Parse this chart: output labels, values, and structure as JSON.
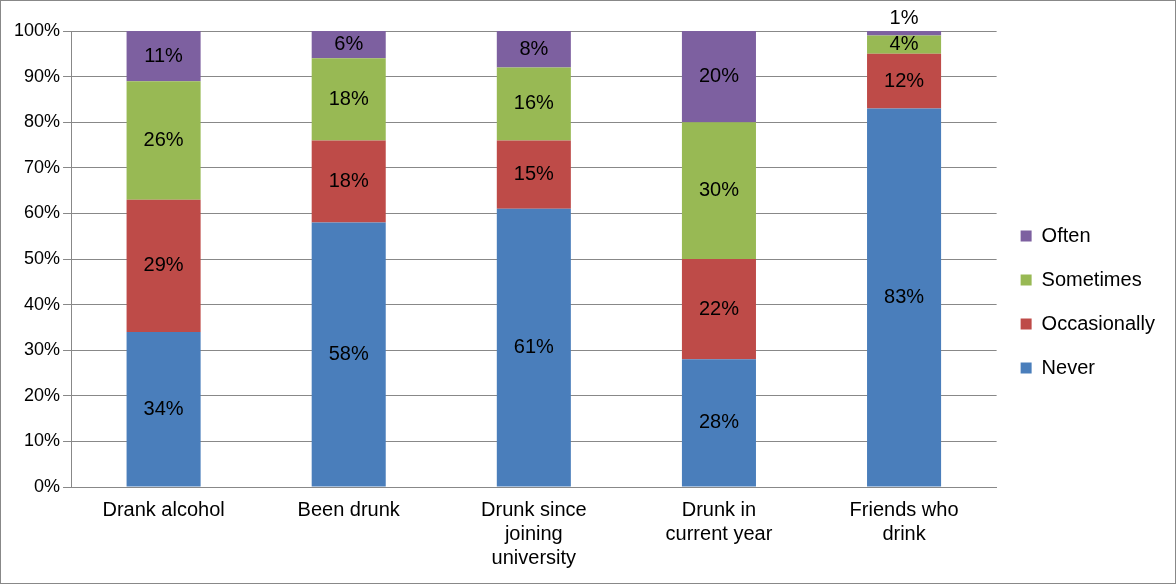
{
  "chart_data": {
    "type": "bar",
    "stacked": true,
    "categories": [
      "Drank alcohol",
      "Been drunk",
      "Drunk since joining university",
      "Drunk in current year",
      "Friends who drink"
    ],
    "series": [
      {
        "name": "Never",
        "color": "#4a7ebb",
        "values": [
          34,
          58,
          61,
          28,
          83
        ],
        "value_labels": [
          "34%",
          "58%",
          "61%",
          "28%",
          "83%"
        ]
      },
      {
        "name": "Occasionally",
        "color": "#be4b48",
        "values": [
          29,
          18,
          15,
          22,
          12
        ],
        "value_labels": [
          "29%",
          "18%",
          "15%",
          "22%",
          "12%"
        ]
      },
      {
        "name": "Sometimes",
        "color": "#98b954",
        "values": [
          26,
          18,
          16,
          30,
          4
        ],
        "value_labels": [
          "26%",
          "18%",
          "16%",
          "30%",
          "4%"
        ]
      },
      {
        "name": "Often",
        "color": "#7d60a0",
        "values": [
          11,
          6,
          8,
          20,
          1
        ],
        "value_labels": [
          "11%",
          "6%",
          "8%",
          "20%",
          "1%"
        ]
      }
    ],
    "ylim": [
      0,
      100
    ],
    "yticks": [
      {
        "value": 0,
        "label": "0%"
      },
      {
        "value": 10,
        "label": "10%"
      },
      {
        "value": 20,
        "label": "20%"
      },
      {
        "value": 30,
        "label": "30%"
      },
      {
        "value": 40,
        "label": "40%"
      },
      {
        "value": 50,
        "label": "50%"
      },
      {
        "value": 60,
        "label": "60%"
      },
      {
        "value": 70,
        "label": "70%"
      },
      {
        "value": 80,
        "label": "80%"
      },
      {
        "value": 90,
        "label": "90%"
      },
      {
        "value": 100,
        "label": "100%"
      }
    ],
    "grid": "y",
    "legend": "right"
  }
}
